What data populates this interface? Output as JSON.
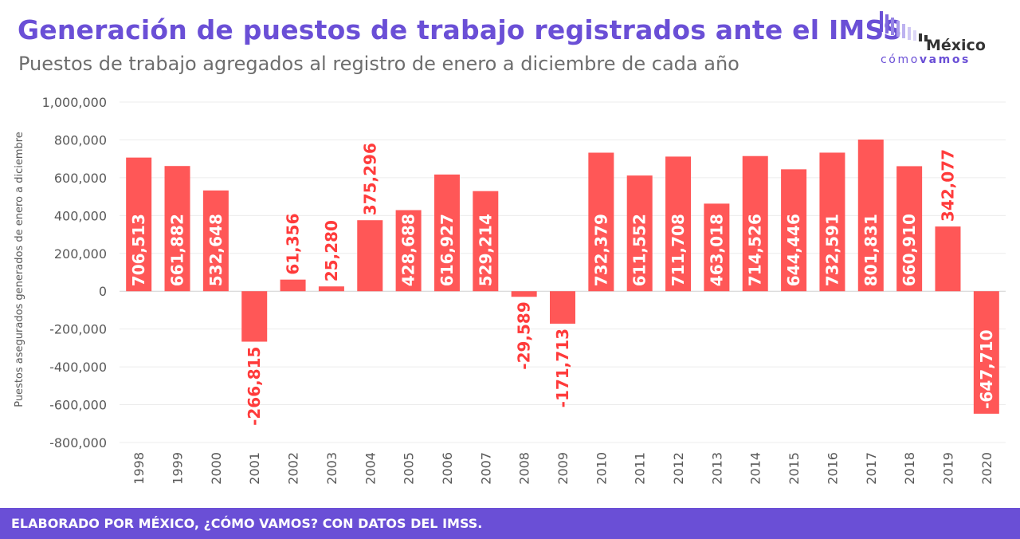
{
  "header": {
    "title": "Generación de puestos de trabajo registrados ante el IMSS",
    "subtitle": "Puestos de trabajo agregados al registro de enero a diciembre  de cada año"
  },
  "logo": {
    "name": "México",
    "tag_light": "cómo",
    "tag_bold": "vamos"
  },
  "footer": {
    "text": "ELABORADO POR MÉXICO, ¿CÓMO VAMOS? CON DATOS DEL IMSS."
  },
  "colors": {
    "accent": "#6a4fd6",
    "bar": "#ff5757",
    "label_negative": "#ff3b3b",
    "axis_text": "#595959",
    "grid": "#ececec"
  },
  "chart_data": {
    "type": "bar",
    "title": "Generación de puestos de trabajo registrados ante el IMSS",
    "ylabel": "Puestos asegurados generados de enero a diciembre",
    "ylim": [
      -800000,
      1000000
    ],
    "yticks": [
      1000000,
      800000,
      600000,
      400000,
      200000,
      0,
      -200000,
      -400000,
      -600000,
      -800000
    ],
    "ytick_labels": [
      "1,000,000",
      "800,000",
      "600,000",
      "400,000",
      "200,000",
      "0",
      "-200,000",
      "-400,000",
      "-600,000",
      "-800,000"
    ],
    "grid": true,
    "categories": [
      "1998",
      "1999",
      "2000",
      "2001",
      "2002",
      "2003",
      "2004",
      "2005",
      "2006",
      "2007",
      "2008",
      "2009",
      "2010",
      "2011",
      "2012",
      "2013",
      "2014",
      "2015",
      "2016",
      "2017",
      "2018",
      "2019",
      "2020"
    ],
    "values": [
      706513,
      661882,
      532648,
      -266815,
      61356,
      25280,
      375296,
      428688,
      616927,
      529214,
      -29589,
      -171713,
      732379,
      611552,
      711708,
      463018,
      714526,
      644446,
      732591,
      801831,
      660910,
      342077,
      -647710
    ],
    "data_labels": [
      "706,513",
      "661,882",
      "532,648",
      "-266,815",
      "61,356",
      "25,280",
      "375,296",
      "428,688",
      "616,927",
      "529,214",
      "-29,589",
      "-171,713",
      "732,379",
      "611,552",
      "711,708",
      "463,018",
      "714,526",
      "644,446",
      "732,591",
      "801,831",
      "660,910",
      "342,077",
      "-647,710"
    ]
  }
}
